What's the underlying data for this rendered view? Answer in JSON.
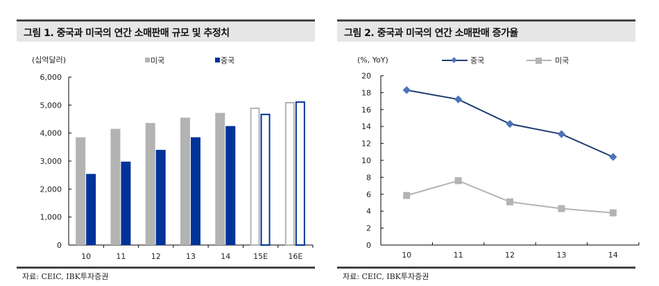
{
  "chart_data": [
    {
      "type": "bar",
      "title": "그림 1. 중국과 미국의 연간 소매판매 규모 및 추정치",
      "unit_label": "(십억달러)",
      "categories": [
        "10",
        "11",
        "12",
        "13",
        "14",
        "15E",
        "16E"
      ],
      "estimate_categories": [
        "15E",
        "16E"
      ],
      "series": [
        {
          "name": "미국",
          "color": "#b3b3b3",
          "values": [
            3850,
            4150,
            4360,
            4550,
            4720,
            4910,
            5110
          ]
        },
        {
          "name": "중국",
          "color": "#003399",
          "values": [
            2540,
            2980,
            3400,
            3850,
            4250,
            4690,
            5130
          ]
        }
      ],
      "yticks": [
        "0",
        "1,000",
        "2,000",
        "3,000",
        "4,000",
        "5,000",
        "6,000"
      ],
      "ylim": [
        0,
        6000
      ],
      "grid": false,
      "legend": "top",
      "source": "자료: CEIC, IBK투자증권"
    },
    {
      "type": "line",
      "title": "그림 2. 중국과 미국의 연간 소매판매 증가율",
      "unit_label": "(%, YoY)",
      "categories": [
        "10",
        "11",
        "12",
        "13",
        "14"
      ],
      "series": [
        {
          "name": "중국",
          "color": "#4a74b8",
          "line_color": "#1f3b73",
          "marker": "diamond",
          "values": [
            18.3,
            17.2,
            14.3,
            13.1,
            10.4
          ]
        },
        {
          "name": "미국",
          "color": "#b3b3b3",
          "line_color": "#b3b3b3",
          "marker": "square",
          "values": [
            5.85,
            7.6,
            5.1,
            4.3,
            3.8
          ]
        }
      ],
      "yticks": [
        "0",
        "2",
        "4",
        "6",
        "8",
        "10",
        "12",
        "14",
        "16",
        "18",
        "20"
      ],
      "ylim": [
        0,
        20
      ],
      "grid": false,
      "legend": "top",
      "source": "자료: CEIC, IBK투자증권"
    }
  ]
}
